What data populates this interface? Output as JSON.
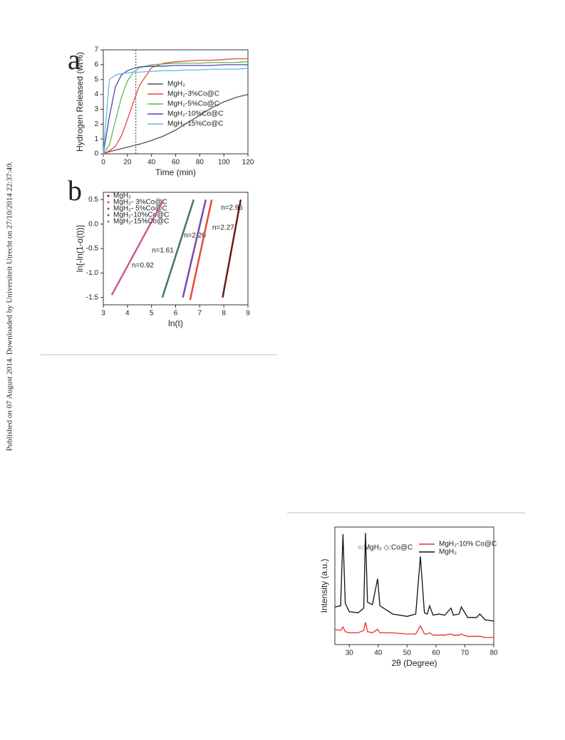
{
  "side_note": "Published on 07 August 2014. Downloaded by Universiteit Utrecht on 27/10/2014 22:37:49.",
  "chart_data": [
    {
      "type": "line",
      "panel": "a",
      "ylabel": "Hydrogen Released (wt%)",
      "xlabel": "Time (min)",
      "xlim": [
        0,
        120
      ],
      "xticks": [
        0,
        20,
        40,
        60,
        80,
        100,
        120
      ],
      "ylim": [
        0,
        7
      ],
      "yticks": [
        0,
        1,
        2,
        3,
        4,
        5,
        6,
        7
      ],
      "reference_x": 27,
      "x": [
        0,
        5,
        10,
        15,
        20,
        25,
        30,
        40,
        50,
        60,
        70,
        80,
        90,
        100,
        110,
        120
      ],
      "series": [
        {
          "name": "MgH₂",
          "color": "#555555",
          "values": [
            0,
            0.15,
            0.25,
            0.35,
            0.45,
            0.55,
            0.65,
            0.9,
            1.2,
            1.6,
            2.1,
            2.6,
            3.1,
            3.5,
            3.8,
            4.0
          ]
        },
        {
          "name": "MgH₂-3%Co@C",
          "color": "#e8493a",
          "values": [
            0,
            0.2,
            0.5,
            1.2,
            2.3,
            3.5,
            4.6,
            5.8,
            6.1,
            6.2,
            6.25,
            6.3,
            6.3,
            6.35,
            6.4,
            6.4
          ]
        },
        {
          "name": "MgH₂-5%Co@C",
          "color": "#5cb85c",
          "values": [
            0,
            0.6,
            2.2,
            3.8,
            4.9,
            5.5,
            5.8,
            6.0,
            6.05,
            6.1,
            6.1,
            6.1,
            6.15,
            6.15,
            6.15,
            6.2
          ]
        },
        {
          "name": "MgH₂-10%Co@C",
          "color": "#4a4aa8",
          "values": [
            0,
            2.5,
            4.5,
            5.3,
            5.6,
            5.75,
            5.85,
            5.9,
            5.9,
            5.95,
            5.95,
            5.95,
            5.95,
            6.0,
            6.0,
            6.0
          ]
        },
        {
          "name": "MgH₂-15%Co@C",
          "color": "#5bc0de",
          "values": [
            0,
            5.0,
            5.3,
            5.4,
            5.45,
            5.5,
            5.5,
            5.55,
            5.6,
            5.6,
            5.65,
            5.65,
            5.7,
            5.7,
            5.7,
            5.75
          ]
        }
      ]
    },
    {
      "type": "line",
      "panel": "b",
      "ylabel": "ln[-ln(1-α(t))]",
      "xlabel": "ln(t)",
      "xlim": [
        3,
        9
      ],
      "xticks": [
        3,
        4,
        5,
        6,
        7,
        8,
        9
      ],
      "ylim": [
        -1.65,
        0.65
      ],
      "yticks": [
        {
          "value": -1.5,
          "label": "-1.5"
        },
        {
          "value": -1,
          "label": "-1.0"
        },
        {
          "value": -0.5,
          "label": "-0.5"
        },
        {
          "value": 0,
          "label": "0.0"
        },
        {
          "value": 0.5,
          "label": "0.5"
        }
      ],
      "annotations": [
        "n=0.92",
        "n=1.61",
        "n=2.20",
        "n=2.27",
        "n=2.95"
      ],
      "series": [
        {
          "name": "MgH₂",
          "color": "#6b1a1a",
          "x": [
            7.95,
            8.7
          ],
          "values": [
            -1.5,
            0.5
          ]
        },
        {
          "name": "MgH₂- 3%Co@C",
          "color": "#e8493a",
          "x": [
            6.6,
            7.5
          ],
          "values": [
            -1.55,
            0.5
          ]
        },
        {
          "name": "MgH₂- 5%Co@C",
          "color": "#7a4aa8",
          "x": [
            6.3,
            7.25
          ],
          "values": [
            -1.5,
            0.5
          ]
        },
        {
          "name": "MgH₂-10%Co@C",
          "color": "#3a7a6a",
          "x": [
            5.45,
            6.75
          ],
          "values": [
            -1.5,
            0.5
          ]
        },
        {
          "name": "MgH₂-15%Co@C",
          "color": "#cc5a9a",
          "x": [
            3.35,
            5.5
          ],
          "values": [
            -1.45,
            0.5
          ]
        }
      ]
    },
    {
      "type": "line",
      "ylabel": "Intensity (a.u.)",
      "xlabel": "2θ (Degree)",
      "annotation": "○:MgH₂  ◇:Co@C",
      "xlim": [
        25,
        80
      ],
      "xticks": [
        30,
        40,
        50,
        60,
        70,
        80
      ],
      "ylim": [
        0,
        10
      ],
      "x": [
        25,
        27,
        27.8,
        28.6,
        30,
        33,
        35,
        35.6,
        36.3,
        38,
        39.8,
        40.6,
        45,
        50,
        53,
        54.6,
        56,
        57,
        57.8,
        59,
        61,
        63,
        65.2,
        66,
        68,
        68.8,
        69.5,
        71,
        74,
        75.2,
        77,
        80
      ],
      "series": [
        {
          "name": "MgH₂-10% Co@C",
          "color": "#e8302a",
          "values": [
            1.3,
            1.2,
            1.5,
            1.1,
            1.0,
            1.0,
            1.2,
            1.9,
            1.1,
            1.0,
            1.3,
            1.0,
            1.0,
            0.9,
            0.9,
            1.6,
            0.9,
            0.9,
            1.0,
            0.8,
            0.8,
            0.8,
            0.9,
            0.8,
            0.8,
            0.9,
            0.8,
            0.7,
            0.7,
            0.7,
            0.6,
            0.6
          ]
        },
        {
          "name": "MgH₂",
          "color": "#111111",
          "values": [
            3.2,
            3.3,
            9.4,
            3.5,
            2.8,
            2.7,
            3.1,
            9.5,
            3.6,
            3.4,
            5.6,
            3.3,
            2.6,
            2.4,
            2.6,
            7.5,
            2.7,
            2.6,
            3.3,
            2.5,
            2.6,
            2.5,
            3.1,
            2.5,
            2.6,
            3.2,
            2.9,
            2.3,
            2.3,
            2.6,
            2.1,
            2.0
          ]
        }
      ]
    }
  ]
}
